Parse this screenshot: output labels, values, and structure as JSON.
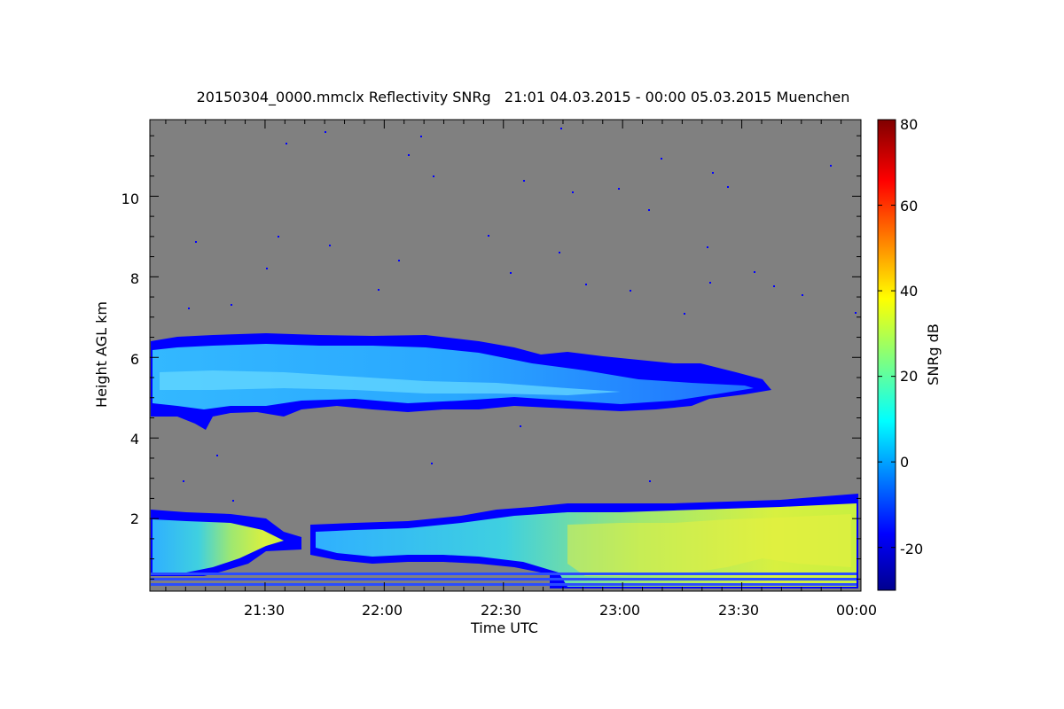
{
  "chart_data": {
    "type": "heatmap",
    "title": "20150304_0000.mmclx Reflectivity SNRg   21:01 04.03.2015 - 00:00 05.03.2015 Muenchen",
    "xlabel": "Time UTC",
    "ylabel": "Height AGL km",
    "x_range": [
      "21:01",
      "00:00"
    ],
    "x_tick_labels": [
      "21:30",
      "22:00",
      "22:30",
      "23:00",
      "23:30",
      "00:00"
    ],
    "y_range_km": [
      0.2,
      11.9
    ],
    "y_ticks": [
      2,
      4,
      6,
      8,
      10
    ],
    "y_tick_labels": [
      "2",
      "4",
      "6",
      "8",
      "10"
    ],
    "background_color": "#808080",
    "colorbar": {
      "label": "SNRg dB",
      "range": [
        -30,
        80
      ],
      "ticks": [
        -20,
        0,
        20,
        40,
        60,
        80
      ],
      "tick_labels": [
        "-20",
        "0",
        "20",
        "40",
        "60",
        "80"
      ],
      "colormap": "jet"
    },
    "features": [
      {
        "layer": "upper",
        "time_start": "21:01",
        "time_end": "23:40",
        "height_km": [
          4.2,
          6.5
        ],
        "snr_db": [
          -15,
          15
        ]
      },
      {
        "layer": "lower",
        "time_start": "21:01",
        "time_end": "00:00",
        "height_km": [
          0.2,
          2.6
        ],
        "snr_db": [
          -15,
          40
        ]
      }
    ]
  }
}
